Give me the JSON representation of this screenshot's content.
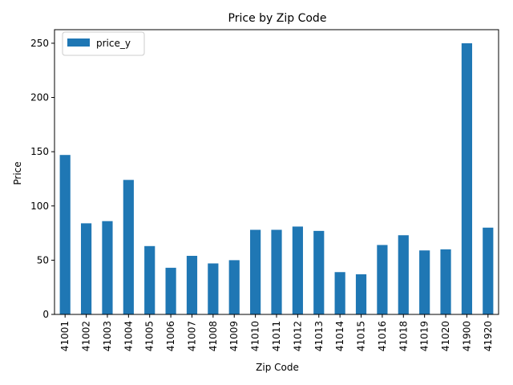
{
  "chart_data": {
    "type": "bar",
    "title": "Price by Zip Code",
    "xlabel": "Zip Code",
    "ylabel": "Price",
    "categories": [
      "41001",
      "41002",
      "41003",
      "41004",
      "41005",
      "41006",
      "41007",
      "41008",
      "41009",
      "41010",
      "41011",
      "41012",
      "41013",
      "41014",
      "41015",
      "41016",
      "41018",
      "41019",
      "41020",
      "41900",
      "41920"
    ],
    "series": [
      {
        "name": "price_y",
        "color": "#1f77b4",
        "values": [
          147,
          84,
          86,
          124,
          63,
          43,
          54,
          47,
          50,
          78,
          78,
          81,
          77,
          39,
          37,
          64,
          73,
          59,
          60,
          250,
          80
        ]
      }
    ],
    "ylim": [
      0,
      262.5
    ],
    "yticks": [
      0,
      50,
      100,
      150,
      200,
      250
    ],
    "grid": false,
    "legend_position": "upper-left"
  }
}
